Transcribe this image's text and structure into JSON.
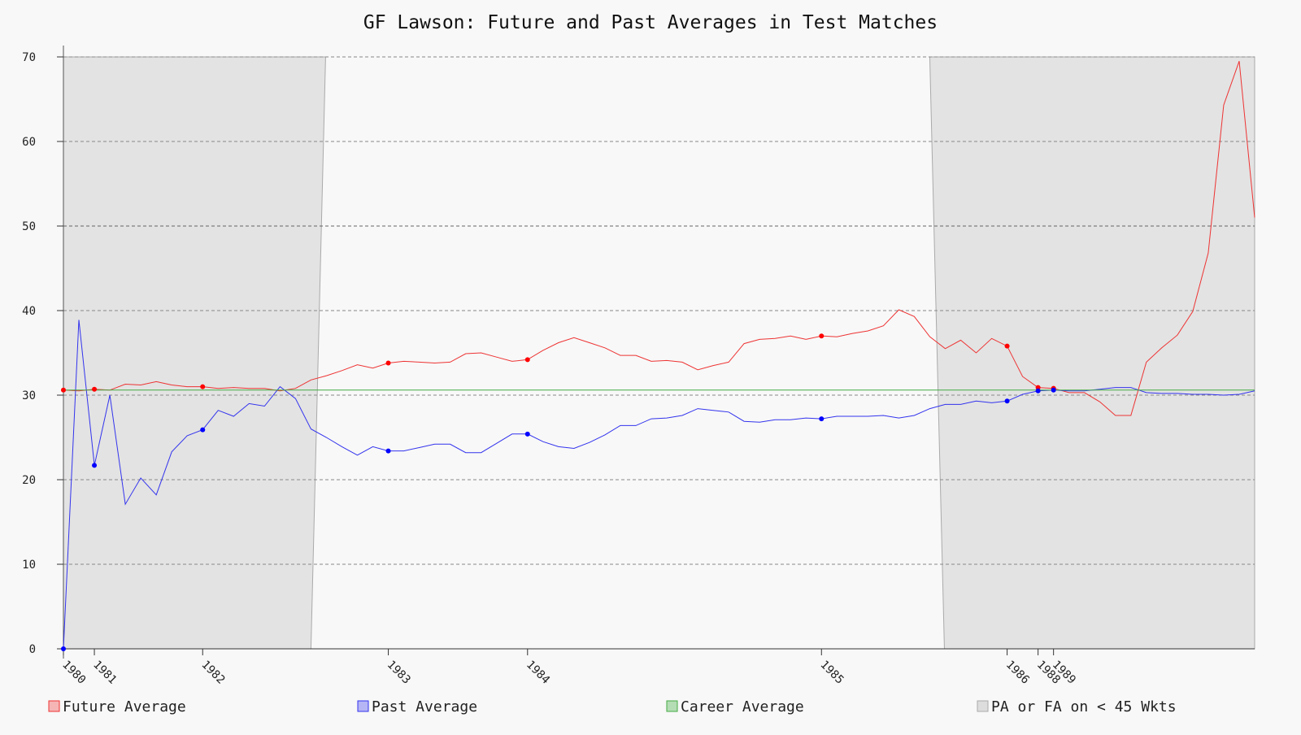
{
  "chart_data": {
    "type": "line",
    "title": "GF Lawson: Future and Past Averages in Test Matches",
    "xlabel": "",
    "ylabel": "",
    "ylim": [
      0,
      70
    ],
    "yticks": [
      0,
      10,
      20,
      30,
      40,
      50,
      60,
      70
    ],
    "grid": true,
    "legend_position": "bottom",
    "x_ticks": [
      {
        "label": "1980",
        "index": 0
      },
      {
        "label": "1981",
        "index": 2
      },
      {
        "label": "1982",
        "index": 9
      },
      {
        "label": "1983",
        "index": 21
      },
      {
        "label": "1984",
        "index": 30
      },
      {
        "label": "1985",
        "index": 49
      },
      {
        "label": "1986",
        "index": 61
      },
      {
        "label": "1988",
        "index": 63
      },
      {
        "label": "1989",
        "index": 64
      }
    ],
    "x_index_range": [
      0,
      77
    ],
    "series": [
      {
        "name": "Future Average",
        "color": "#ee3333",
        "values": [
          30.6,
          30.5,
          30.7,
          30.6,
          31.3,
          31.2,
          31.6,
          31.2,
          31.0,
          31.0,
          30.8,
          30.9,
          30.8,
          30.8,
          30.5,
          30.8,
          31.8,
          32.3,
          32.9,
          33.6,
          33.2,
          33.8,
          34.0,
          33.9,
          33.8,
          33.9,
          34.9,
          35.0,
          34.5,
          34.0,
          34.2,
          35.3,
          36.2,
          36.8,
          36.2,
          35.6,
          34.7,
          34.7,
          34.0,
          34.1,
          33.9,
          33.0,
          33.5,
          33.9,
          36.1,
          36.6,
          36.7,
          37.0,
          36.6,
          37.0,
          36.9,
          37.3,
          37.6,
          38.2,
          40.1,
          39.3,
          36.9,
          35.5,
          36.5,
          35.0,
          36.7,
          35.8,
          32.2,
          30.9,
          30.8,
          30.3,
          30.3,
          29.2,
          27.6,
          27.6,
          33.9,
          35.6,
          37.1,
          39.9,
          46.8,
          64.3,
          69.5,
          51.0
        ],
        "marker_indices": [
          0,
          2,
          9,
          21,
          30,
          49,
          61,
          63,
          64
        ]
      },
      {
        "name": "Past Average",
        "color": "#3333ee",
        "values": [
          0.0,
          38.9,
          21.7,
          30.0,
          17.1,
          20.2,
          18.2,
          23.3,
          25.2,
          25.9,
          28.2,
          27.5,
          29.0,
          28.7,
          31.0,
          29.6,
          26.0,
          25.0,
          23.9,
          22.9,
          23.9,
          23.4,
          23.4,
          23.8,
          24.2,
          24.2,
          23.2,
          23.2,
          24.3,
          25.4,
          25.4,
          24.5,
          23.9,
          23.7,
          24.4,
          25.3,
          26.4,
          26.4,
          27.2,
          27.3,
          27.6,
          28.4,
          28.2,
          28.0,
          26.9,
          26.8,
          27.1,
          27.1,
          27.3,
          27.2,
          27.5,
          27.5,
          27.5,
          27.6,
          27.3,
          27.6,
          28.4,
          28.9,
          28.9,
          29.3,
          29.1,
          29.3,
          30.1,
          30.5,
          30.6,
          30.5,
          30.5,
          30.7,
          30.9,
          30.9,
          30.3,
          30.2,
          30.2,
          30.1,
          30.1,
          30.0,
          30.1,
          30.5
        ],
        "marker_indices": [
          0,
          2,
          9,
          21,
          30,
          49,
          61,
          63,
          64
        ]
      },
      {
        "name": "Career Average",
        "color": "#44aa44",
        "value": 30.6
      }
    ],
    "shaded_regions": {
      "name": "PA or FA on < 45 Wkts",
      "color": "#e3e3e3",
      "ranges": [
        [
          0,
          16
        ],
        [
          56,
          77
        ]
      ]
    }
  }
}
